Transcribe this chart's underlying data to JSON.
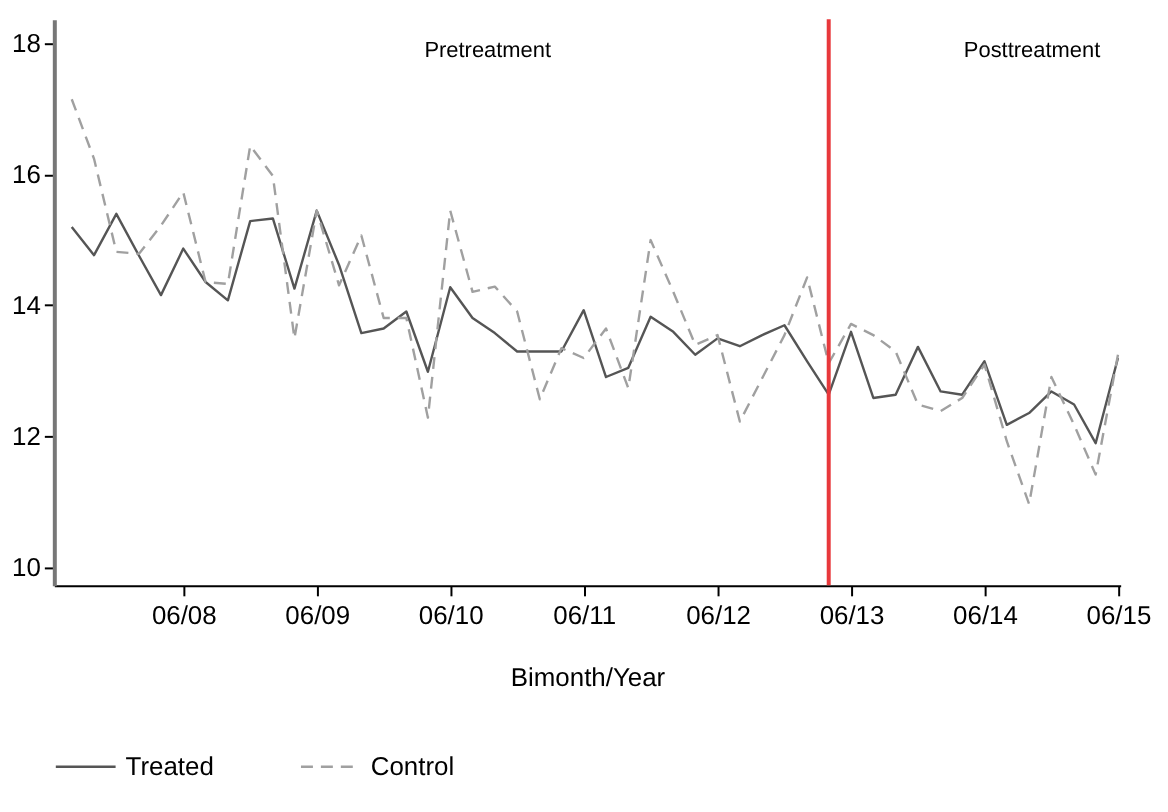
{
  "chart_data": {
    "type": "line",
    "xlabel": "Bimonth/Year",
    "x": [
      "2007-08",
      "2007-10",
      "2007-12",
      "2008-02",
      "2008-04",
      "2008-06",
      "2008-08",
      "2008-10",
      "2008-12",
      "2009-02",
      "2009-04",
      "2009-06",
      "2009-08",
      "2009-10",
      "2009-12",
      "2010-02",
      "2010-04",
      "2010-06",
      "2010-08",
      "2010-10",
      "2010-12",
      "2011-02",
      "2011-04",
      "2011-06",
      "2011-08",
      "2011-10",
      "2011-12",
      "2012-02",
      "2012-04",
      "2012-06",
      "2012-08",
      "2012-10",
      "2012-12",
      "2013-02",
      "2013-04",
      "2013-06",
      "2013-08",
      "2013-10",
      "2013-12",
      "2014-02",
      "2014-04",
      "2014-06",
      "2014-08",
      "2014-10",
      "2014-12",
      "2015-02",
      "2015-04",
      "2015-06"
    ],
    "xlim": [
      "2007-06-13",
      "2015-06-07"
    ],
    "xticks": [
      {
        "value": "2008-06",
        "label": "06/08"
      },
      {
        "value": "2009-06",
        "label": "06/09"
      },
      {
        "value": "2010-06",
        "label": "06/10"
      },
      {
        "value": "2011-06",
        "label": "06/11"
      },
      {
        "value": "2012-06",
        "label": "06/12"
      },
      {
        "value": "2013-06",
        "label": "06/13"
      },
      {
        "value": "2014-06",
        "label": "06/14"
      },
      {
        "value": "2015-06",
        "label": "06/15"
      }
    ],
    "ylim": [
      9.72,
      18.36
    ],
    "yticks": [
      10,
      12,
      14,
      16,
      18
    ],
    "grid": false,
    "legend": "bottom",
    "series": [
      {
        "name": "Treated",
        "color": "#555555",
        "line_style": "solid",
        "values": [
          15.19,
          14.76,
          15.39,
          14.75,
          14.15,
          14.86,
          14.35,
          14.07,
          15.28,
          15.32,
          14.25,
          15.44,
          14.61,
          13.57,
          13.64,
          13.9,
          12.98,
          14.27,
          13.8,
          13.57,
          13.29,
          13.29,
          13.29,
          13.92,
          12.9,
          13.04,
          13.82,
          13.59,
          13.24,
          13.49,
          13.37,
          13.54,
          13.69,
          13.14,
          12.63,
          13.59,
          12.58,
          12.63,
          13.36,
          12.68,
          12.63,
          13.14,
          12.17,
          12.35,
          12.68,
          12.48,
          11.89,
          13.19
        ]
      },
      {
        "name": "Control",
        "color": "#a0a0a0",
        "line_style": "dashed",
        "values": [
          17.14,
          16.23,
          14.81,
          14.78,
          15.21,
          15.72,
          14.35,
          14.32,
          16.43,
          15.97,
          13.49,
          15.44,
          14.3,
          15.06,
          13.8,
          13.8,
          12.28,
          15.44,
          14.2,
          14.28,
          13.9,
          12.56,
          13.34,
          13.19,
          13.64,
          12.73,
          14.99,
          14.2,
          13.39,
          13.54,
          12.22,
          12.88,
          13.54,
          14.42,
          13.11,
          13.71,
          13.54,
          13.29,
          12.48,
          12.38,
          12.58,
          13.09,
          11.92,
          10.96,
          12.9,
          12.17,
          11.41,
          13.24
        ]
      }
    ],
    "ref_lines": [
      {
        "axis": "x",
        "value": "2013-04",
        "color": "#e8383b",
        "line_style": "solid"
      }
    ],
    "annotations": [
      "Pretreatment",
      "Posttreatment"
    ]
  }
}
